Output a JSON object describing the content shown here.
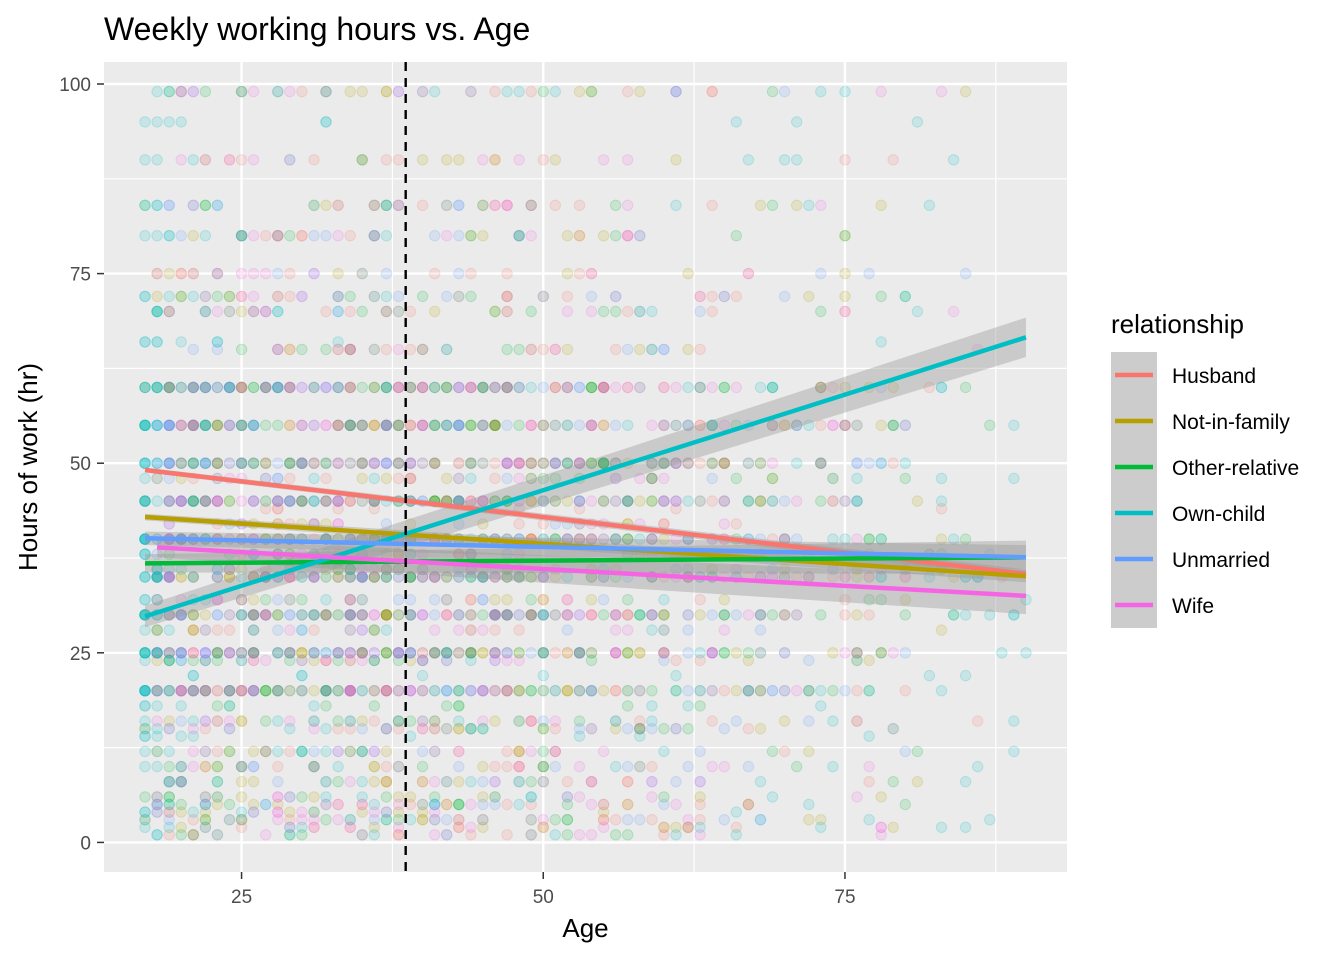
{
  "chart_data": {
    "type": "scatter",
    "title": "Weekly working hours vs. Age",
    "xlabel": "Age",
    "ylabel": "Hours of work (hr)",
    "xlim": [
      13.6,
      93.4
    ],
    "ylim": [
      -3.9,
      102.9
    ],
    "xticks": [
      25,
      50,
      75
    ],
    "yticks": [
      0,
      25,
      50,
      75,
      100
    ],
    "grid": true,
    "legend": {
      "title": "relationship",
      "position": "right"
    },
    "reference_line": {
      "x": 38.6,
      "style": "dashed",
      "color": "#000000"
    },
    "point_alpha": 0.15,
    "series": [
      {
        "name": "Husband",
        "color": "#F8766D",
        "trend": {
          "x": [
            17,
            90
          ],
          "y": [
            49.1,
            35.4
          ]
        },
        "ci_halfwidth": 0.6,
        "points": {
          "x_range": [
            19,
            90
          ],
          "hours": [
            99,
            90,
            84,
            80,
            75,
            72,
            70,
            65,
            60,
            55,
            50,
            48,
            45,
            44,
            42,
            40,
            38,
            36,
            35,
            32,
            30,
            28,
            25,
            24,
            20,
            16,
            15,
            12,
            10,
            8,
            5,
            3,
            2,
            1
          ]
        }
      },
      {
        "name": "Not-in-family",
        "color": "#B79F00",
        "trend": {
          "x": [
            17,
            90
          ],
          "y": [
            42.9,
            35.1
          ]
        },
        "ci_halfwidth": 0.8,
        "points": {
          "x_range": [
            17,
            90
          ],
          "hours": [
            99,
            90,
            84,
            80,
            75,
            72,
            70,
            65,
            60,
            55,
            50,
            48,
            45,
            42,
            40,
            38,
            36,
            35,
            32,
            30,
            28,
            25,
            24,
            20,
            16,
            15,
            12,
            10,
            8,
            6,
            5,
            4,
            3,
            2
          ]
        }
      },
      {
        "name": "Other-relative",
        "color": "#00BA38",
        "trend": {
          "x": [
            17,
            90
          ],
          "y": [
            36.8,
            37.6
          ]
        },
        "ci_halfwidth": 2.2,
        "points": {
          "x_range": [
            17,
            90
          ],
          "hours": [
            99,
            84,
            80,
            72,
            70,
            65,
            60,
            55,
            50,
            48,
            45,
            40,
            38,
            36,
            35,
            32,
            30,
            25,
            24,
            20,
            18,
            16,
            15,
            12,
            10,
            8,
            6,
            5,
            3,
            1
          ]
        }
      },
      {
        "name": "Own-child",
        "color": "#00BFC4",
        "trend": {
          "x": [
            17,
            90
          ],
          "y": [
            29.8,
            66.6
          ]
        },
        "ci_halfwidth": 2.6,
        "points": {
          "x_range": [
            17,
            90
          ],
          "hours": [
            99,
            95,
            90,
            84,
            80,
            72,
            70,
            66,
            60,
            55,
            50,
            48,
            45,
            40,
            38,
            36,
            35,
            32,
            30,
            28,
            25,
            24,
            22,
            20,
            18,
            16,
            15,
            14,
            12,
            10,
            8,
            6,
            5,
            4,
            3,
            2,
            1
          ]
        }
      },
      {
        "name": "Unmarried",
        "color": "#619CFF",
        "trend": {
          "x": [
            17,
            90
          ],
          "y": [
            40.1,
            37.6
          ]
        },
        "ci_halfwidth": 1.6,
        "points": {
          "x_range": [
            18,
            90
          ],
          "hours": [
            99,
            84,
            80,
            75,
            72,
            70,
            65,
            60,
            55,
            50,
            48,
            45,
            42,
            40,
            38,
            36,
            35,
            32,
            30,
            28,
            25,
            24,
            20,
            16,
            15,
            12,
            10,
            8,
            5,
            3
          ]
        }
      },
      {
        "name": "Wife",
        "color": "#F564E3",
        "trend": {
          "x": [
            18,
            90
          ],
          "y": [
            38.9,
            32.5
          ]
        },
        "ci_halfwidth": 2.4,
        "points": {
          "x_range": [
            18,
            90
          ],
          "hours": [
            99,
            90,
            84,
            80,
            75,
            72,
            70,
            65,
            60,
            55,
            50,
            48,
            45,
            42,
            40,
            38,
            36,
            35,
            32,
            30,
            28,
            25,
            24,
            20,
            16,
            15,
            12,
            10,
            8,
            6,
            5,
            4,
            3,
            2,
            1
          ]
        }
      }
    ]
  }
}
